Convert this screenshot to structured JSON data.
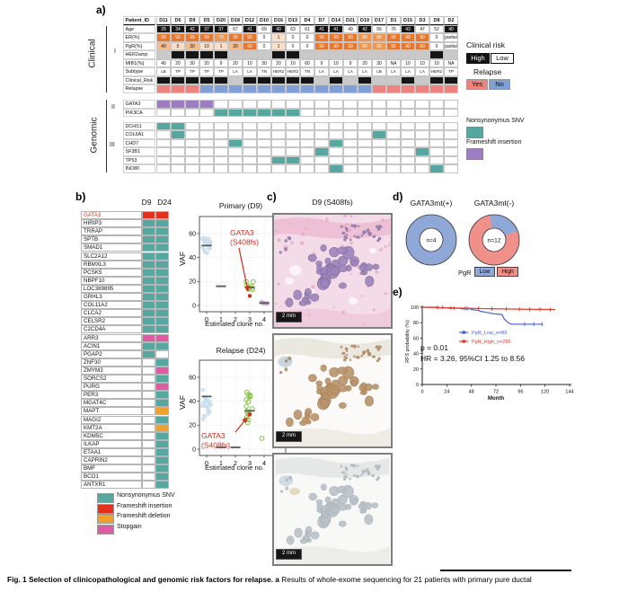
{
  "colors": {
    "snv": "#55a79f",
    "fsins_a": "#9c7dc1",
    "fsins_b": "#e2311f",
    "fsdel": "#efa02d",
    "stop": "#df5ba4",
    "relapse_yes": "#ee837d",
    "relapse_no": "#7fa0d4",
    "risk_high": "#141414",
    "risk_low": "#c9c9c9",
    "er_90": "#e8762c",
    "er_70": "#f0954e",
    "er_30": "#f6bb8d",
    "er_1": "#fbe0c9",
    "pgr_low_blue": "#8fa8d8",
    "pgr_high_red": "#f0908a",
    "km_low_blue": "#4b5fd2",
    "km_high_red": "#e23b2e",
    "gata3_name_red": "#e2311f",
    "highlight_point_red": "#d42a1d"
  },
  "panel_a": {
    "label": "a)",
    "side": {
      "clinical": "Clinical",
      "genomic": "Genomic",
      "s1": "I",
      "s2": "II",
      "s3": "III"
    },
    "patient_header": "Patient_ID",
    "patients": [
      "D11",
      "D6",
      "D9",
      "D5",
      "D20",
      "D18",
      "D12",
      "D10",
      "D16",
      "D13",
      "D4",
      "D7",
      "D14",
      "D21",
      "D19",
      "D17",
      "D1",
      "D15",
      "D3",
      "D8",
      "D2"
    ],
    "rows": {
      "age": {
        "label": "Age",
        "values": [
          "29",
          "34",
          "42",
          "37",
          "37",
          "67",
          "41",
          "69",
          "40",
          "63",
          "61",
          "41",
          "41",
          "49",
          "42",
          "56",
          "76",
          "43",
          "47",
          "52",
          "40"
        ],
        "black": [
          1,
          1,
          1,
          1,
          1,
          0,
          1,
          0,
          1,
          0,
          0,
          1,
          1,
          0,
          1,
          0,
          0,
          1,
          0,
          0,
          1
        ]
      },
      "er": {
        "label": "ER(%)",
        "values": [
          "99",
          "90",
          "99",
          "99",
          "70",
          "90",
          "90",
          "0",
          "1",
          "0",
          "0",
          "90",
          "99",
          "90",
          "80",
          "80",
          "95",
          "99",
          "90",
          "0",
          "partial"
        ]
      },
      "pgr": {
        "label": "PgR(%)",
        "values": [
          "40",
          "5",
          "30",
          "10",
          "1",
          "30",
          "90",
          "0",
          "1",
          "0",
          "0",
          "90",
          "99",
          "99",
          "80",
          "80",
          "95",
          "90",
          "90",
          "0",
          "partial"
        ]
      },
      "her2amp": {
        "label": "HER2amp",
        "amp": [
          0,
          1,
          1,
          1,
          1,
          0,
          0,
          0,
          1,
          1,
          0,
          0,
          0,
          0,
          0,
          0,
          0,
          0,
          0,
          1,
          0
        ]
      },
      "mib1": {
        "label": "MIB1(%)",
        "values": [
          "40",
          "20",
          "30",
          "20",
          "9",
          "20",
          "10",
          "30",
          "20",
          "10",
          "60",
          "9",
          "10",
          "9",
          "20",
          "30",
          "NA",
          "10",
          "10",
          "10",
          "NA"
        ]
      },
      "subtype": {
        "label": "Subtype",
        "values": [
          "LB",
          "TP",
          "TP",
          "TP",
          "TP",
          "LA",
          "LA",
          "TN",
          "HER2",
          "HER2",
          "TN",
          "LA",
          "LA",
          "LA",
          "LA",
          "LB",
          "LA",
          "LA",
          "LA",
          "HER2",
          "TP"
        ]
      },
      "clinical_risk": {
        "label": "Clinical_Risk",
        "high": [
          1,
          1,
          1,
          1,
          1,
          0,
          1,
          1,
          1,
          1,
          1,
          0,
          1,
          0,
          1,
          0,
          0,
          1,
          0,
          1,
          1
        ]
      },
      "relapse": {
        "label": "Relapse",
        "yes": [
          1,
          1,
          1,
          0,
          0,
          0,
          0,
          0,
          0,
          0,
          0,
          0,
          0,
          0,
          0,
          1,
          1,
          1,
          1,
          1,
          1
        ]
      }
    },
    "genes_ii": [
      {
        "name": "GATA3",
        "mutation": "fsins_a",
        "cols": [
          0,
          1,
          2,
          3
        ]
      },
      {
        "name": "PIK3CA",
        "mutation": "snv",
        "cols": [
          4,
          5,
          6,
          7,
          8,
          9
        ]
      }
    ],
    "genes_iii": [
      {
        "name": "DCHS1",
        "mutation": "snv",
        "cols": [
          0,
          1
        ]
      },
      {
        "name": "COL6A1",
        "mutation": "snv",
        "cols": [
          1,
          15
        ]
      },
      {
        "name": "CHD7",
        "mutation": "snv",
        "cols": [
          5,
          12
        ]
      },
      {
        "name": "SF3B1",
        "mutation": "snv",
        "cols": [
          11,
          18
        ]
      },
      {
        "name": "TP53",
        "mutation": "snv",
        "cols": [
          8,
          9
        ]
      },
      {
        "name": "INO80",
        "mutation": "snv",
        "cols": [
          12,
          19
        ]
      }
    ],
    "legend": {
      "clinical_risk_title": "Clinical risk",
      "high": "High",
      "low": "Low",
      "relapse_title": "Relapse",
      "yes": "Yes",
      "no": "No",
      "snv": "Nonsynonymus SNV",
      "fsins": "Frameshift insertion"
    }
  },
  "panel_b": {
    "label": "b)",
    "col_headers": [
      "D9",
      "D24"
    ],
    "genes": [
      {
        "name": "GATA3",
        "red_name": true,
        "d9": "fsins_b",
        "d24": "fsins_b"
      },
      {
        "name": "HIRIP3",
        "d9": "snv",
        "d24": "snv"
      },
      {
        "name": "TRRAP",
        "d9": "snv",
        "d24": "snv"
      },
      {
        "name": "SPTB",
        "d9": "snv",
        "d24": "snv"
      },
      {
        "name": "SMAD1",
        "d9": "snv",
        "d24": "snv"
      },
      {
        "name": "SLC2A12",
        "d9": "snv",
        "d24": "snv"
      },
      {
        "name": "RBMXL3",
        "d9": "snv",
        "d24": "snv"
      },
      {
        "name": "PCSK5",
        "d9": "snv",
        "d24": "snv"
      },
      {
        "name": "NBPF10",
        "d9": "snv",
        "d24": "snv"
      },
      {
        "name": "LOC389895",
        "d9": "snv",
        "d24": "snv"
      },
      {
        "name": "GRHL3",
        "d9": "snv",
        "d24": "snv"
      },
      {
        "name": "COL11A2",
        "d9": "snv",
        "d24": "snv"
      },
      {
        "name": "CLCA2",
        "d9": "snv",
        "d24": "snv"
      },
      {
        "name": "CELSR2",
        "d9": "snv",
        "d24": "snv"
      },
      {
        "name": "C2CD4A",
        "d9": "snv",
        "d24": "snv"
      },
      {
        "name": "ARR3",
        "d9": "stop",
        "d24": "stop"
      },
      {
        "name": "ACIN1",
        "d9": "snv",
        "d24": "snv"
      },
      {
        "name": "PGAP2",
        "d9": "snv",
        "d24": null
      },
      {
        "name": "ZNF30",
        "d9": null,
        "d24": "snv"
      },
      {
        "name": "ZMYM3",
        "d9": null,
        "d24": "stop"
      },
      {
        "name": "SORCS2",
        "d9": null,
        "d24": "snv"
      },
      {
        "name": "PURG",
        "d9": null,
        "d24": "stop"
      },
      {
        "name": "PER3",
        "d9": null,
        "d24": "snv"
      },
      {
        "name": "MGAT4C",
        "d9": null,
        "d24": "snv"
      },
      {
        "name": "MAPT",
        "d9": null,
        "d24": "fsdel"
      },
      {
        "name": "MAGI2",
        "d9": null,
        "d24": "snv"
      },
      {
        "name": "KMT2A",
        "d9": null,
        "d24": "fsdel"
      },
      {
        "name": "KDM5C",
        "d9": null,
        "d24": "snv"
      },
      {
        "name": "ILKAP",
        "d9": null,
        "d24": "snv"
      },
      {
        "name": "ETAA1",
        "d9": null,
        "d24": "snv"
      },
      {
        "name": "CAPRIN2",
        "d9": null,
        "d24": "snv"
      },
      {
        "name": "BMF",
        "d9": null,
        "d24": "snv"
      },
      {
        "name": "BCO1",
        "d9": null,
        "d24": "snv"
      },
      {
        "name": "ANTXR1",
        "d9": null,
        "d24": "snv"
      }
    ],
    "legend": [
      {
        "label": "Nonsynonymus SNV",
        "color": "#55a79f"
      },
      {
        "label": "Frameshift insertion",
        "color": "#e2311f"
      },
      {
        "label": "Frameshift deletion",
        "color": "#efa02d"
      },
      {
        "label": "Stopgain",
        "color": "#df5ba4"
      }
    ]
  },
  "panel_c": {
    "label": "c)",
    "title": "D9 (S408fs)",
    "scale_bar": "2 mm"
  },
  "panel_d": {
    "label": "d)"
  },
  "panel_e": {
    "label": "e)"
  },
  "chart_data": [
    {
      "id": "vaf_primary",
      "type": "scatter",
      "title": "Primary (D9)",
      "xlabel": "Estimated clone no.",
      "ylabel": "VAF",
      "xticks": [
        0,
        1,
        2,
        3,
        4,
        5
      ],
      "yticks": [
        0,
        20,
        40,
        60
      ],
      "ylim": [
        -6,
        72
      ],
      "clusters": [
        {
          "clone": 0,
          "n": 22,
          "vaf_range": [
            43,
            62
          ],
          "median": 50,
          "color": "#cfe3f2",
          "stroke": "#b9d2e6",
          "style": "filled"
        },
        {
          "clone": 1,
          "n": 4,
          "vaf_range": [
            13,
            19
          ],
          "median": 16,
          "color": "#f0f0f0",
          "stroke": "#999999",
          "style": "open"
        },
        {
          "clone": 3,
          "n": 11,
          "vaf_range": [
            8,
            22
          ],
          "median": 15,
          "color": "#8bc34a",
          "style": "open"
        },
        {
          "clone": 4,
          "n": 5,
          "vaf_range": [
            1,
            3
          ],
          "median": 2,
          "color": "#c9a0d0",
          "stroke": "#b98fc4",
          "style": "filled"
        },
        {
          "clone": 5,
          "n": 7,
          "vaf_range": [
            1,
            3
          ],
          "median": 2,
          "color": "#c9a0d0",
          "stroke": "#b98fc4",
          "style": "filled"
        }
      ],
      "highlight": {
        "label1": "GATA3",
        "label2": "(S408fs)",
        "clone": 3,
        "vaf": 8
      }
    },
    {
      "id": "vaf_relapse",
      "type": "scatter",
      "title": "Relapse (D24)",
      "xlabel": "Estimated clone no.",
      "ylabel": "VAF",
      "xticks": [
        0,
        1,
        2,
        3,
        4,
        5
      ],
      "yticks": [
        0,
        20,
        40,
        60
      ],
      "ylim": [
        -6,
        72
      ],
      "clusters": [
        {
          "clone": 0,
          "n": 20,
          "vaf_range": [
            22,
            55
          ],
          "median": 44,
          "color": "#cfe3f2",
          "stroke": "#b9d2e6",
          "style": "filled"
        },
        {
          "clone": 1,
          "n": 2,
          "vaf_range": [
            1,
            2
          ],
          "median": 1.5,
          "color": "#f0f0f0",
          "stroke": "#999999",
          "style": "open"
        },
        {
          "clone": 2,
          "n": 2,
          "vaf_range": [
            1,
            2
          ],
          "median": 1.5,
          "color": "#f0f0f0",
          "stroke": "#999999",
          "style": "open"
        },
        {
          "clone": 3,
          "n": 16,
          "vaf_range": [
            16,
            55
          ],
          "median": 32,
          "color": "#8bc34a",
          "style": "open"
        },
        {
          "clone": 4,
          "n": 1,
          "vaf_range": [
            9,
            9
          ],
          "median": null,
          "color": "#8bc34a",
          "style": "open"
        },
        {
          "clone": 5,
          "n": 24,
          "vaf_range": [
            17,
            63
          ],
          "median": 31,
          "color": "#c9a0d0",
          "style": "open"
        }
      ],
      "highlight": {
        "label1": "GATA3",
        "label2": "(S408fs)",
        "clone": 3,
        "vaf": 29
      }
    },
    {
      "id": "donut_gata3_pos",
      "type": "pie",
      "title": "GATA3mt(+)",
      "center_label": "n=4",
      "segments": [
        {
          "label": "Low",
          "fraction": 1.0,
          "color": "#8fa8d8"
        }
      ],
      "legend_title": "PgR",
      "legend": [
        {
          "label": "Low",
          "color": "#8fa8d8"
        },
        {
          "label": "High",
          "color": "#f0908a"
        }
      ]
    },
    {
      "id": "donut_gata3_neg",
      "type": "pie",
      "title": "GATA3mt(-)",
      "center_label": "n=12",
      "segments": [
        {
          "label": "Low",
          "fraction": 0.22,
          "color": "#8fa8d8"
        },
        {
          "label": "High",
          "fraction": 0.78,
          "color": "#f0908a"
        }
      ],
      "start_deg": -10
    },
    {
      "id": "rfs_km",
      "type": "line",
      "ylabel": "RFS probability (%)",
      "xlabel": "Month",
      "xticks": [
        0,
        24,
        48,
        72,
        96,
        120,
        144
      ],
      "yticks": [
        0,
        20,
        40,
        60,
        80,
        100
      ],
      "series": [
        {
          "name": "PgR_Low_n=89",
          "color": "#4b5fd2",
          "points": [
            [
              0,
              100
            ],
            [
              14,
              100
            ],
            [
              14,
              99.3
            ],
            [
              26,
              99.3
            ],
            [
              26,
              98.6
            ],
            [
              38,
              98.6
            ],
            [
              38,
              98
            ],
            [
              48,
              98
            ],
            [
              48,
              97
            ],
            [
              54,
              96
            ],
            [
              58,
              94.5
            ],
            [
              62,
              93.5
            ],
            [
              66,
              92.5
            ],
            [
              70,
              91.5
            ],
            [
              74,
              91
            ],
            [
              78,
              90.5
            ],
            [
              80,
              85
            ],
            [
              83,
              81
            ],
            [
              86,
              78.5
            ],
            [
              90,
              78
            ],
            [
              118,
              78
            ]
          ],
          "censors": [
            [
              20,
              100
            ],
            [
              31,
              99
            ],
            [
              44,
              98.3
            ],
            [
              100,
              78
            ],
            [
              109,
              78
            ],
            [
              117,
              78
            ]
          ]
        },
        {
          "name": "PgR_High_n=286",
          "color": "#e23b2e",
          "points": [
            [
              0,
              100
            ],
            [
              20,
              99.5
            ],
            [
              40,
              98.8
            ],
            [
              60,
              98.2
            ],
            [
              80,
              97.8
            ],
            [
              100,
              97.4
            ],
            [
              130,
              97.1
            ]
          ],
          "censors": [
            [
              15,
              99.7
            ],
            [
              28,
              99.2
            ],
            [
              42,
              98.7
            ],
            [
              55,
              98.3
            ],
            [
              68,
              98
            ],
            [
              82,
              97.7
            ],
            [
              95,
              97.5
            ],
            [
              105,
              97.3
            ],
            [
              115,
              97.25
            ],
            [
              125,
              97.15
            ]
          ]
        }
      ],
      "annotations": [
        "p = 0.01",
        "HR = 3.26, 95%CI 1.25 to 8.56"
      ]
    }
  ],
  "caption": {
    "bold": "Fig. 1 Selection of clinicopathological and genomic risk factors for relapse. a",
    "rest": " Results of whole-exome sequencing for 21 patients with primary pure ductal"
  }
}
